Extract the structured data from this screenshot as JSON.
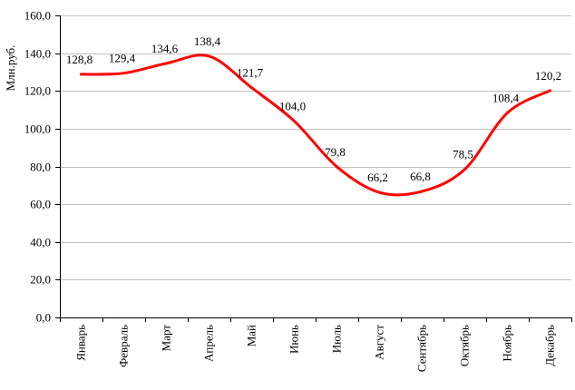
{
  "chart_data": {
    "type": "line",
    "title": "",
    "xlabel": "",
    "ylabel": "Млн.руб.",
    "ylim": [
      0,
      160
    ],
    "y_ticks": [
      "0,0",
      "20,0",
      "40,0",
      "60,0",
      "80,0",
      "100,0",
      "120,0",
      "140,0",
      "160,0"
    ],
    "grid": true,
    "legend": "none",
    "categories": [
      "Январь",
      "Февраль",
      "Март",
      "Апрель",
      "Май",
      "Июнь",
      "Июль",
      "Август",
      "Сентябрь",
      "Октябрь",
      "Ноябрь",
      "Декабрь"
    ],
    "series": [
      {
        "values": [
          128.8,
          129.4,
          134.6,
          138.4,
          121.7,
          104.0,
          79.8,
          66.2,
          66.8,
          78.5,
          108.4,
          120.2
        ],
        "labels": [
          "128,8",
          "129,4",
          "134,6",
          "138,4",
          "121,7",
          "104,0",
          "79,8",
          "66,2",
          "66,8",
          "78,5",
          "108,4",
          "120,2"
        ],
        "color": "#ff0000"
      }
    ]
  }
}
